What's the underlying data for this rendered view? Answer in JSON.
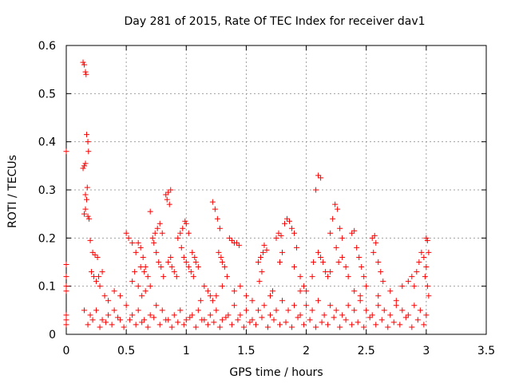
{
  "chart_data": {
    "type": "scatter",
    "title": "Day 281 of 2015, Rate Of TEC Index for receiver dav1",
    "xlabel": "GPS time / hours",
    "ylabel": "ROTI / TECUs",
    "xlim": [
      0,
      3.5
    ],
    "ylim": [
      0,
      0.6
    ],
    "x_ticks": [
      "0",
      "0.5",
      "1",
      "1.5",
      "2",
      "2.5",
      "3",
      "3.5"
    ],
    "y_ticks": [
      "0",
      "0.1",
      "0.2",
      "0.3",
      "0.4",
      "0.5",
      "0.6"
    ],
    "grid": true,
    "marker": "+",
    "color": "#ff0000",
    "series": [
      {
        "points": [
          [
            0.0,
            0.38
          ],
          [
            0.0,
            0.145
          ],
          [
            0.0,
            0.12
          ],
          [
            0.0,
            0.1
          ],
          [
            0.0,
            0.09
          ],
          [
            0.0,
            0.04
          ],
          [
            0.0,
            0.03
          ],
          [
            0.0,
            0.02
          ],
          [
            0.14,
            0.565
          ],
          [
            0.15,
            0.56
          ],
          [
            0.16,
            0.545
          ],
          [
            0.165,
            0.54
          ],
          [
            0.17,
            0.415
          ],
          [
            0.18,
            0.4
          ],
          [
            0.185,
            0.38
          ],
          [
            0.16,
            0.355
          ],
          [
            0.15,
            0.35
          ],
          [
            0.14,
            0.345
          ],
          [
            0.16,
            0.29
          ],
          [
            0.17,
            0.28
          ],
          [
            0.175,
            0.305
          ],
          [
            0.16,
            0.26
          ],
          [
            0.18,
            0.245
          ],
          [
            0.19,
            0.24
          ],
          [
            0.15,
            0.25
          ],
          [
            0.2,
            0.195
          ],
          [
            0.22,
            0.17
          ],
          [
            0.24,
            0.165
          ],
          [
            0.26,
            0.16
          ],
          [
            0.21,
            0.13
          ],
          [
            0.23,
            0.12
          ],
          [
            0.25,
            0.11
          ],
          [
            0.27,
            0.12
          ],
          [
            0.3,
            0.13
          ],
          [
            0.28,
            0.1
          ],
          [
            0.32,
            0.08
          ],
          [
            0.5,
            0.21
          ],
          [
            0.52,
            0.2
          ],
          [
            0.55,
            0.19
          ],
          [
            0.58,
            0.17
          ],
          [
            0.6,
            0.19
          ],
          [
            0.62,
            0.18
          ],
          [
            0.64,
            0.16
          ],
          [
            0.66,
            0.14
          ],
          [
            0.68,
            0.12
          ],
          [
            0.7,
            0.1
          ],
          [
            0.57,
            0.13
          ],
          [
            0.55,
            0.11
          ],
          [
            0.62,
            0.14
          ],
          [
            0.65,
            0.13
          ],
          [
            0.6,
            0.1
          ],
          [
            0.63,
            0.08
          ],
          [
            0.66,
            0.09
          ],
          [
            0.72,
            0.2
          ],
          [
            0.74,
            0.21
          ],
          [
            0.76,
            0.22
          ],
          [
            0.78,
            0.23
          ],
          [
            0.8,
            0.21
          ],
          [
            0.7,
            0.255
          ],
          [
            0.73,
            0.19
          ],
          [
            0.75,
            0.17
          ],
          [
            0.77,
            0.15
          ],
          [
            0.79,
            0.14
          ],
          [
            0.81,
            0.12
          ],
          [
            0.83,
            0.29
          ],
          [
            0.85,
            0.295
          ],
          [
            0.87,
            0.3
          ],
          [
            0.84,
            0.28
          ],
          [
            0.86,
            0.27
          ],
          [
            0.85,
            0.15
          ],
          [
            0.88,
            0.14
          ],
          [
            0.9,
            0.13
          ],
          [
            0.92,
            0.12
          ],
          [
            0.87,
            0.16
          ],
          [
            0.93,
            0.2
          ],
          [
            0.95,
            0.21
          ],
          [
            0.97,
            0.22
          ],
          [
            0.99,
            0.235
          ],
          [
            1.0,
            0.23
          ],
          [
            1.02,
            0.21
          ],
          [
            0.96,
            0.18
          ],
          [
            0.98,
            0.16
          ],
          [
            1.0,
            0.15
          ],
          [
            1.02,
            0.14
          ],
          [
            1.04,
            0.13
          ],
          [
            1.06,
            0.12
          ],
          [
            1.08,
            0.15
          ],
          [
            1.05,
            0.17
          ],
          [
            1.07,
            0.16
          ],
          [
            1.1,
            0.14
          ],
          [
            1.15,
            0.1
          ],
          [
            1.18,
            0.09
          ],
          [
            1.2,
            0.08
          ],
          [
            1.22,
            0.07
          ],
          [
            1.22,
            0.275
          ],
          [
            1.24,
            0.26
          ],
          [
            1.26,
            0.24
          ],
          [
            1.28,
            0.22
          ],
          [
            1.27,
            0.17
          ],
          [
            1.29,
            0.16
          ],
          [
            1.3,
            0.15
          ],
          [
            1.32,
            0.14
          ],
          [
            1.34,
            0.12
          ],
          [
            1.3,
            0.1
          ],
          [
            1.36,
            0.2
          ],
          [
            1.38,
            0.195
          ],
          [
            1.4,
            0.19
          ],
          [
            1.42,
            0.19
          ],
          [
            1.44,
            0.185
          ],
          [
            1.6,
            0.15
          ],
          [
            1.62,
            0.16
          ],
          [
            1.64,
            0.17
          ],
          [
            1.65,
            0.185
          ],
          [
            1.67,
            0.175
          ],
          [
            1.63,
            0.13
          ],
          [
            1.61,
            0.11
          ],
          [
            1.75,
            0.2
          ],
          [
            1.77,
            0.21
          ],
          [
            1.79,
            0.205
          ],
          [
            1.82,
            0.23
          ],
          [
            1.84,
            0.24
          ],
          [
            1.86,
            0.235
          ],
          [
            1.88,
            0.22
          ],
          [
            1.9,
            0.21
          ],
          [
            1.8,
            0.17
          ],
          [
            1.78,
            0.15
          ],
          [
            1.92,
            0.18
          ],
          [
            1.9,
            0.14
          ],
          [
            1.95,
            0.12
          ],
          [
            1.98,
            0.1
          ],
          [
            2.0,
            0.09
          ],
          [
            2.1,
            0.33
          ],
          [
            2.12,
            0.325
          ],
          [
            2.08,
            0.3
          ],
          [
            2.1,
            0.17
          ],
          [
            2.12,
            0.16
          ],
          [
            2.14,
            0.15
          ],
          [
            2.16,
            0.13
          ],
          [
            2.18,
            0.12
          ],
          [
            2.06,
            0.15
          ],
          [
            2.05,
            0.12
          ],
          [
            2.2,
            0.21
          ],
          [
            2.22,
            0.24
          ],
          [
            2.24,
            0.27
          ],
          [
            2.26,
            0.26
          ],
          [
            2.28,
            0.22
          ],
          [
            2.3,
            0.2
          ],
          [
            2.25,
            0.18
          ],
          [
            2.27,
            0.15
          ],
          [
            2.3,
            0.16
          ],
          [
            2.33,
            0.14
          ],
          [
            2.35,
            0.12
          ],
          [
            2.2,
            0.13
          ],
          [
            2.38,
            0.21
          ],
          [
            2.4,
            0.215
          ],
          [
            2.42,
            0.18
          ],
          [
            2.44,
            0.16
          ],
          [
            2.46,
            0.14
          ],
          [
            2.48,
            0.12
          ],
          [
            2.5,
            0.1
          ],
          [
            2.55,
            0.2
          ],
          [
            2.57,
            0.205
          ],
          [
            2.58,
            0.19
          ],
          [
            2.6,
            0.15
          ],
          [
            2.56,
            0.17
          ],
          [
            2.62,
            0.13
          ],
          [
            2.64,
            0.11
          ],
          [
            2.8,
            0.1
          ],
          [
            2.85,
            0.11
          ],
          [
            2.88,
            0.12
          ],
          [
            2.9,
            0.1
          ],
          [
            2.92,
            0.13
          ],
          [
            2.94,
            0.15
          ],
          [
            2.96,
            0.17
          ],
          [
            2.98,
            0.16
          ],
          [
            3.0,
            0.2
          ],
          [
            3.01,
            0.195
          ],
          [
            3.02,
            0.17
          ],
          [
            3.0,
            0.14
          ],
          [
            2.99,
            0.12
          ],
          [
            3.01,
            0.1
          ],
          [
            3.02,
            0.08
          ],
          [
            0.15,
            0.05
          ],
          [
            0.2,
            0.04
          ],
          [
            0.25,
            0.05
          ],
          [
            0.3,
            0.03
          ],
          [
            0.35,
            0.04
          ],
          [
            0.4,
            0.05
          ],
          [
            0.45,
            0.03
          ],
          [
            0.5,
            0.06
          ],
          [
            0.55,
            0.04
          ],
          [
            0.6,
            0.05
          ],
          [
            0.65,
            0.03
          ],
          [
            0.7,
            0.04
          ],
          [
            0.75,
            0.06
          ],
          [
            0.8,
            0.05
          ],
          [
            0.85,
            0.03
          ],
          [
            0.9,
            0.04
          ],
          [
            0.95,
            0.05
          ],
          [
            1.0,
            0.03
          ],
          [
            1.05,
            0.04
          ],
          [
            1.1,
            0.05
          ],
          [
            1.15,
            0.03
          ],
          [
            1.2,
            0.04
          ],
          [
            1.25,
            0.05
          ],
          [
            1.3,
            0.03
          ],
          [
            1.35,
            0.04
          ],
          [
            1.4,
            0.06
          ],
          [
            1.45,
            0.04
          ],
          [
            1.5,
            0.05
          ],
          [
            1.55,
            0.03
          ],
          [
            1.6,
            0.05
          ],
          [
            1.65,
            0.06
          ],
          [
            1.7,
            0.04
          ],
          [
            1.75,
            0.05
          ],
          [
            1.8,
            0.07
          ],
          [
            1.85,
            0.05
          ],
          [
            1.9,
            0.06
          ],
          [
            1.95,
            0.04
          ],
          [
            2.0,
            0.06
          ],
          [
            2.05,
            0.05
          ],
          [
            2.1,
            0.07
          ],
          [
            2.15,
            0.04
          ],
          [
            2.2,
            0.06
          ],
          [
            2.25,
            0.05
          ],
          [
            2.3,
            0.04
          ],
          [
            2.35,
            0.06
          ],
          [
            2.4,
            0.05
          ],
          [
            2.45,
            0.07
          ],
          [
            2.5,
            0.05
          ],
          [
            2.55,
            0.04
          ],
          [
            2.6,
            0.06
          ],
          [
            2.65,
            0.05
          ],
          [
            2.7,
            0.04
          ],
          [
            2.75,
            0.06
          ],
          [
            2.8,
            0.05
          ],
          [
            2.85,
            0.04
          ],
          [
            2.9,
            0.06
          ],
          [
            2.95,
            0.05
          ],
          [
            3.0,
            0.04
          ],
          [
            0.18,
            0.02
          ],
          [
            0.28,
            0.015
          ],
          [
            0.38,
            0.02
          ],
          [
            0.48,
            0.015
          ],
          [
            0.58,
            0.02
          ],
          [
            0.68,
            0.015
          ],
          [
            0.78,
            0.02
          ],
          [
            0.88,
            0.015
          ],
          [
            0.98,
            0.02
          ],
          [
            1.08,
            0.015
          ],
          [
            1.18,
            0.02
          ],
          [
            1.28,
            0.015
          ],
          [
            1.38,
            0.02
          ],
          [
            1.48,
            0.015
          ],
          [
            1.58,
            0.02
          ],
          [
            1.68,
            0.015
          ],
          [
            1.78,
            0.02
          ],
          [
            1.88,
            0.015
          ],
          [
            1.98,
            0.02
          ],
          [
            2.08,
            0.015
          ],
          [
            2.18,
            0.02
          ],
          [
            2.28,
            0.015
          ],
          [
            2.38,
            0.02
          ],
          [
            2.48,
            0.015
          ],
          [
            2.58,
            0.02
          ],
          [
            2.68,
            0.015
          ],
          [
            2.78,
            0.02
          ],
          [
            2.88,
            0.015
          ],
          [
            2.98,
            0.02
          ],
          [
            0.22,
            0.03
          ],
          [
            0.33,
            0.025
          ],
          [
            0.43,
            0.035
          ],
          [
            0.53,
            0.03
          ],
          [
            0.63,
            0.025
          ],
          [
            0.73,
            0.035
          ],
          [
            0.83,
            0.03
          ],
          [
            0.93,
            0.025
          ],
          [
            1.03,
            0.035
          ],
          [
            1.13,
            0.03
          ],
          [
            1.23,
            0.025
          ],
          [
            1.33,
            0.035
          ],
          [
            1.43,
            0.03
          ],
          [
            1.53,
            0.025
          ],
          [
            1.63,
            0.035
          ],
          [
            1.73,
            0.03
          ],
          [
            1.83,
            0.025
          ],
          [
            1.93,
            0.035
          ],
          [
            2.03,
            0.03
          ],
          [
            2.13,
            0.025
          ],
          [
            2.23,
            0.035
          ],
          [
            2.33,
            0.03
          ],
          [
            2.43,
            0.025
          ],
          [
            2.53,
            0.035
          ],
          [
            2.63,
            0.03
          ],
          [
            2.73,
            0.025
          ],
          [
            2.83,
            0.035
          ],
          [
            2.93,
            0.03
          ],
          [
            1.4,
            0.09
          ],
          [
            1.45,
            0.1
          ],
          [
            1.5,
            0.08
          ],
          [
            1.55,
            0.07
          ],
          [
            1.7,
            0.08
          ],
          [
            1.72,
            0.09
          ],
          [
            2.6,
            0.08
          ],
          [
            2.7,
            0.09
          ],
          [
            2.75,
            0.07
          ],
          [
            0.4,
            0.09
          ],
          [
            0.45,
            0.08
          ],
          [
            0.35,
            0.07
          ],
          [
            1.25,
            0.08
          ],
          [
            1.12,
            0.07
          ],
          [
            1.95,
            0.09
          ],
          [
            2.4,
            0.09
          ],
          [
            2.45,
            0.08
          ]
        ]
      }
    ]
  }
}
